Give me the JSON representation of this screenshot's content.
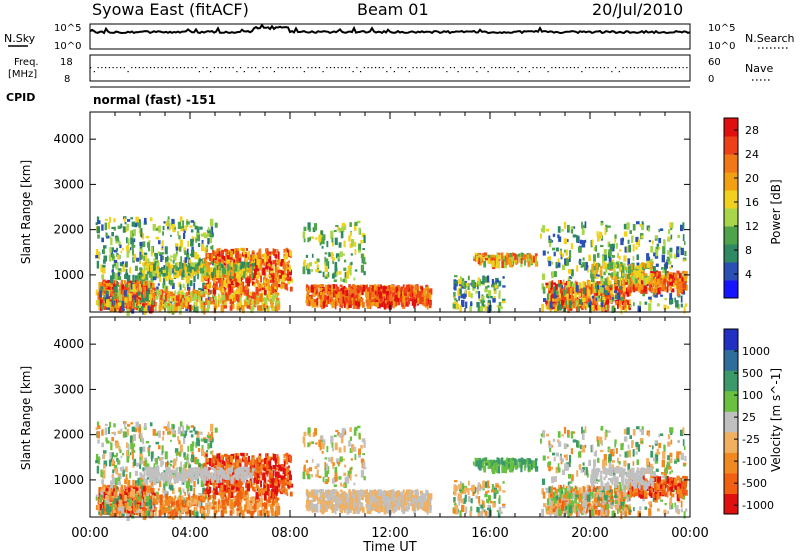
{
  "header": {
    "station": "Syowa East (fitACF)",
    "beam": "Beam 01",
    "date": "20/Jul/2010"
  },
  "top_panels": {
    "nsky_label": "N.Sky",
    "nsky_ticks": [
      "10^5",
      "10^0"
    ],
    "nsearch_label": "N.Search",
    "nsearch_ticks": [
      "10^5",
      "10^0"
    ],
    "freq_label_1": "Freq.",
    "freq_label_2": "[MHz]",
    "freq_ticks": [
      "18",
      "8"
    ],
    "nave_label": "Nave",
    "nave_ticks": [
      "60",
      "0"
    ],
    "cpid_label": "CPID",
    "cpid_value": "normal (fast) -151"
  },
  "chart_data": [
    {
      "type": "heatmap",
      "title": "",
      "xlabel": "",
      "ylabel": "Slant Range [km]",
      "ylim": [
        180,
        4600
      ],
      "yticks": [
        "1000",
        "2000",
        "3000",
        "4000"
      ],
      "xticks": [
        "00:00",
        "04:00",
        "08:00",
        "12:00",
        "16:00",
        "20:00",
        "00:00"
      ],
      "colorbar": {
        "label": "Power [dB]",
        "ticks": [
          "4",
          "8",
          "12",
          "16",
          "20",
          "24",
          "28"
        ],
        "colors": [
          "#1414ff",
          "#2a4fb5",
          "#2f8a63",
          "#4fa34a",
          "#a8d64a",
          "#f0d21e",
          "#f0a010",
          "#f07818",
          "#ee4018",
          "#e01010"
        ]
      }
    },
    {
      "type": "heatmap",
      "title": "",
      "xlabel": "Time UT",
      "ylabel": "Slant Range [km]",
      "ylim": [
        180,
        4600
      ],
      "yticks": [
        "1000",
        "2000",
        "3000",
        "4000"
      ],
      "xticks": [
        "00:00",
        "04:00",
        "08:00",
        "12:00",
        "16:00",
        "20:00",
        "00:00"
      ],
      "colorbar": {
        "label": "Velocity [m s^-1]",
        "ticks": [
          "1000",
          "500",
          "100",
          "25",
          "-25",
          "-100",
          "-500",
          "-1000"
        ],
        "colors": [
          "#2030c0",
          "#2f6e9a",
          "#3a9a6a",
          "#6ac040",
          "#c0c0c0",
          "#f0b060",
          "#f08a20",
          "#f06010",
          "#e01010"
        ]
      }
    }
  ]
}
